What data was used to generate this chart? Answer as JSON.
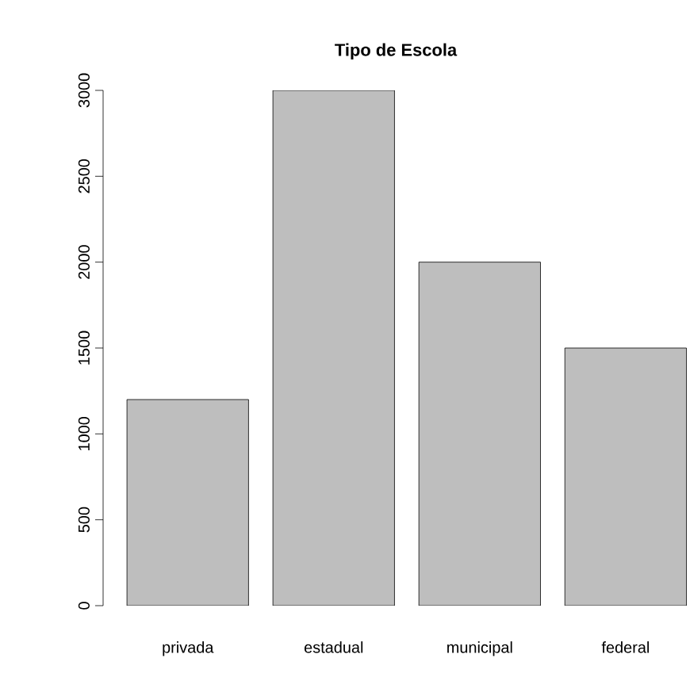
{
  "chart_data": {
    "type": "bar",
    "title": "Tipo de Escola",
    "categories": [
      "privada",
      "estadual",
      "municipal",
      "federal"
    ],
    "values": [
      1200,
      3000,
      2000,
      1500
    ],
    "color": "#bebebe",
    "ylim": [
      0,
      3000
    ],
    "yticks": [
      0,
      500,
      1000,
      1500,
      2000,
      2500,
      3000
    ],
    "grid": false
  }
}
